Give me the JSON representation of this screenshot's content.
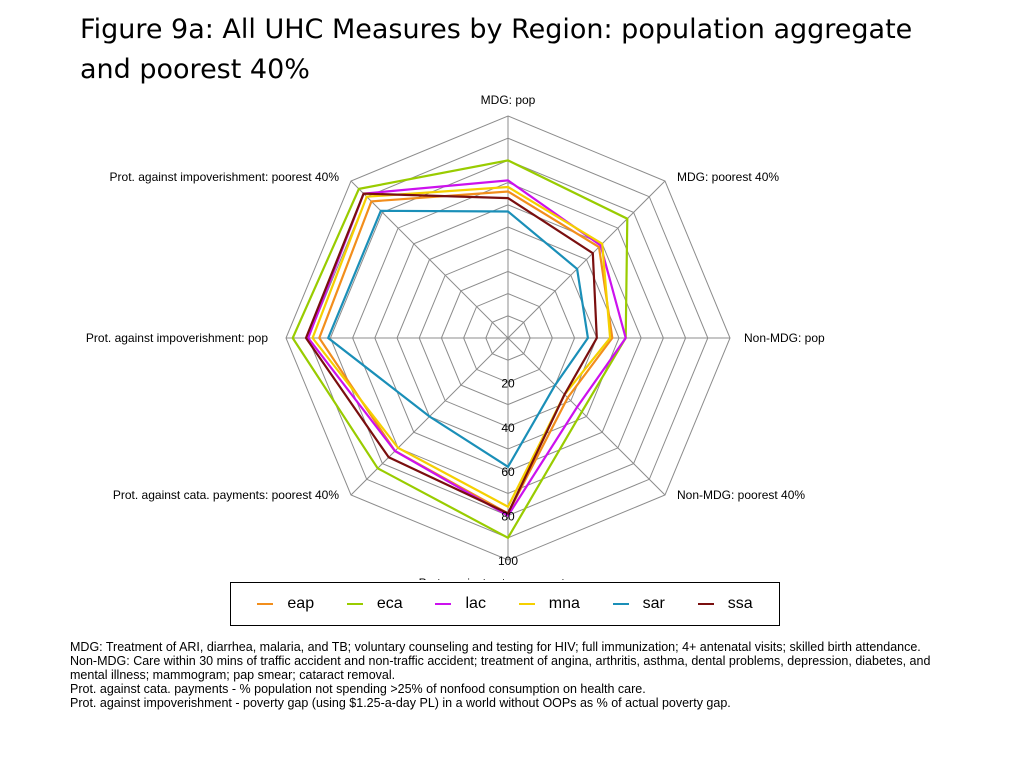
{
  "title": {
    "line1": "Figure 9a:  All UHC Measures by Region: population aggregate",
    "line2": "and poorest 40%"
  },
  "chart_data": {
    "type": "radar",
    "title": "Figure 9a:  All UHC Measures by Region: population aggregate and poorest 40%",
    "axes": [
      "MDG: pop",
      "MDG: poorest 40%",
      "Non-MDG: pop",
      "Non-MDG: poorest 40%",
      "Prot. against cata. payments: pop",
      "Prot. against cata. payments: poorest 40%",
      "Prot. against impoverishment: pop",
      "Prot. against impoverishment: poorest 40%"
    ],
    "r_ticks": [
      20,
      40,
      60,
      80,
      100
    ],
    "r_range": [
      0,
      100
    ],
    "gridlines": [
      10,
      20,
      30,
      40,
      50,
      60,
      70,
      80,
      90,
      100
    ],
    "series": [
      {
        "name": "eap",
        "color": "#f28e1c",
        "values": [
          66,
          58,
          47,
          38,
          79,
          72,
          85,
          87
        ]
      },
      {
        "name": "eca",
        "color": "#99cc00",
        "values": [
          80,
          76,
          53,
          47,
          90,
          83,
          97,
          95
        ]
      },
      {
        "name": "lac",
        "color": "#cc11ee",
        "values": [
          71,
          59,
          53,
          44,
          80,
          72,
          90,
          92
        ]
      },
      {
        "name": "mna",
        "color": "#f5d000",
        "values": [
          68,
          60,
          46,
          36,
          76,
          70,
          88,
          90
        ]
      },
      {
        "name": "sar",
        "color": "#1a8fb8",
        "values": [
          57,
          44,
          36,
          30,
          58,
          50,
          81,
          81
        ]
      },
      {
        "name": "ssa",
        "color": "#7a0f0f",
        "values": [
          63,
          54,
          40,
          36,
          79,
          76,
          91,
          92
        ]
      }
    ]
  },
  "legend": {
    "items": [
      {
        "label": "eap",
        "color": "#f28e1c"
      },
      {
        "label": "eca",
        "color": "#99cc00"
      },
      {
        "label": "lac",
        "color": "#cc11ee"
      },
      {
        "label": "mna",
        "color": "#f5d000"
      },
      {
        "label": "sar",
        "color": "#1a8fb8"
      },
      {
        "label": "ssa",
        "color": "#7a0f0f"
      }
    ]
  },
  "notes": [
    "MDG: Treatment of ARI, diarrhea, malaria, and TB; voluntary counseling and testing for HIV; full immunization; 4+ antenatal visits; skilled birth attendance.",
    "Non-MDG: Care within 30 mins of traffic accident and non-traffic accident; treatment of angina, arthritis, asthma, dental problems, depression, diabetes, and mental illness; mammogram; pap smear; cataract removal.",
    "Prot. against cata. payments - % population not spending >25% of nonfood consumption on health care.",
    "Prot. against impoverishment - poverty gap (using $1.25-a-day PL) in a world without OOPs as % of actual poverty gap."
  ]
}
